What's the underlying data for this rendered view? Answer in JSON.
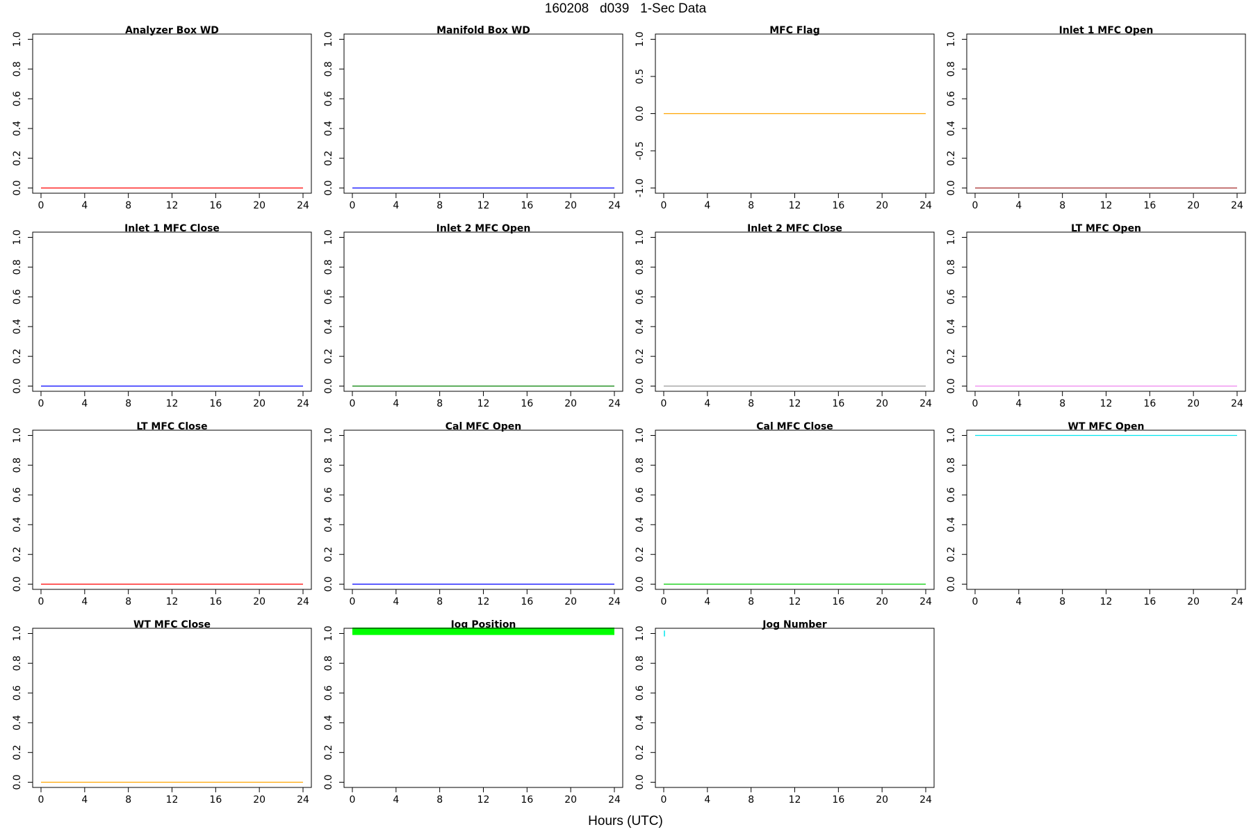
{
  "title": "160208   d039   1-Sec Data",
  "xlabel": "Hours (UTC)",
  "chart_data": [
    {
      "type": "line",
      "title": "Analyzer Box WD",
      "color": "#ff0000",
      "x": [
        0,
        24
      ],
      "y": [
        0,
        0
      ],
      "xlim": [
        0,
        24
      ],
      "ylim": [
        0,
        1
      ],
      "xticks": [
        "0",
        "4",
        "8",
        "12",
        "16",
        "20",
        "24"
      ],
      "yticks": [
        "0.0",
        "0.2",
        "0.4",
        "0.6",
        "0.8",
        "1.0"
      ]
    },
    {
      "type": "line",
      "title": "Manifold Box WD",
      "color": "#0000ff",
      "x": [
        0,
        24
      ],
      "y": [
        0,
        0
      ],
      "xlim": [
        0,
        24
      ],
      "ylim": [
        0,
        1
      ],
      "xticks": [
        "0",
        "4",
        "8",
        "12",
        "16",
        "20",
        "24"
      ],
      "yticks": [
        "0.0",
        "0.2",
        "0.4",
        "0.6",
        "0.8",
        "1.0"
      ]
    },
    {
      "type": "line",
      "title": "MFC Flag",
      "color": "#ffa500",
      "x": [
        0,
        24
      ],
      "y": [
        0,
        0
      ],
      "xlim": [
        0,
        24
      ],
      "ylim": [
        -1,
        1
      ],
      "xticks": [
        "0",
        "4",
        "8",
        "12",
        "16",
        "20",
        "24"
      ],
      "yticks": [
        "-1.0",
        "-0.5",
        "0.0",
        "0.5",
        "1.0"
      ]
    },
    {
      "type": "line",
      "title": "Inlet 1 MFC Open",
      "color": "#a52a2a",
      "x": [
        0,
        24
      ],
      "y": [
        0,
        0
      ],
      "xlim": [
        0,
        24
      ],
      "ylim": [
        0,
        1
      ],
      "xticks": [
        "0",
        "4",
        "8",
        "12",
        "16",
        "20",
        "24"
      ],
      "yticks": [
        "0.0",
        "0.2",
        "0.4",
        "0.6",
        "0.8",
        "1.0"
      ]
    },
    {
      "type": "line",
      "title": "Inlet 1 MFC Close",
      "color": "#0000ff",
      "x": [
        0,
        24
      ],
      "y": [
        0,
        0
      ],
      "xlim": [
        0,
        24
      ],
      "ylim": [
        0,
        1
      ],
      "xticks": [
        "0",
        "4",
        "8",
        "12",
        "16",
        "20",
        "24"
      ],
      "yticks": [
        "0.0",
        "0.2",
        "0.4",
        "0.6",
        "0.8",
        "1.0"
      ]
    },
    {
      "type": "line",
      "title": "Inlet 2 MFC Open",
      "color": "#008000",
      "x": [
        0,
        24
      ],
      "y": [
        0,
        0
      ],
      "xlim": [
        0,
        24
      ],
      "ylim": [
        0,
        1
      ],
      "xticks": [
        "0",
        "4",
        "8",
        "12",
        "16",
        "20",
        "24"
      ],
      "yticks": [
        "0.0",
        "0.2",
        "0.4",
        "0.6",
        "0.8",
        "1.0"
      ]
    },
    {
      "type": "line",
      "title": "Inlet 2 MFC Close",
      "color": "#999999",
      "x": [
        0,
        24
      ],
      "y": [
        0,
        0
      ],
      "xlim": [
        0,
        24
      ],
      "ylim": [
        0,
        1
      ],
      "xticks": [
        "0",
        "4",
        "8",
        "12",
        "16",
        "20",
        "24"
      ],
      "yticks": [
        "0.0",
        "0.2",
        "0.4",
        "0.6",
        "0.8",
        "1.0"
      ]
    },
    {
      "type": "line",
      "title": "LT MFC Open",
      "color": "#ee82ee",
      "x": [
        0,
        24
      ],
      "y": [
        0,
        0
      ],
      "xlim": [
        0,
        24
      ],
      "ylim": [
        0,
        1
      ],
      "xticks": [
        "0",
        "4",
        "8",
        "12",
        "16",
        "20",
        "24"
      ],
      "yticks": [
        "0.0",
        "0.2",
        "0.4",
        "0.6",
        "0.8",
        "1.0"
      ]
    },
    {
      "type": "line",
      "title": "LT MFC Close",
      "color": "#ff0000",
      "x": [
        0,
        24
      ],
      "y": [
        0,
        0
      ],
      "xlim": [
        0,
        24
      ],
      "ylim": [
        0,
        1
      ],
      "xticks": [
        "0",
        "4",
        "8",
        "12",
        "16",
        "20",
        "24"
      ],
      "yticks": [
        "0.0",
        "0.2",
        "0.4",
        "0.6",
        "0.8",
        "1.0"
      ]
    },
    {
      "type": "line",
      "title": "Cal MFC Open",
      "color": "#0000ff",
      "x": [
        0,
        24
      ],
      "y": [
        0,
        0
      ],
      "xlim": [
        0,
        24
      ],
      "ylim": [
        0,
        1
      ],
      "xticks": [
        "0",
        "4",
        "8",
        "12",
        "16",
        "20",
        "24"
      ],
      "yticks": [
        "0.0",
        "0.2",
        "0.4",
        "0.6",
        "0.8",
        "1.0"
      ]
    },
    {
      "type": "line",
      "title": "Cal MFC Close",
      "color": "#00cc00",
      "x": [
        0,
        24
      ],
      "y": [
        0,
        0
      ],
      "xlim": [
        0,
        24
      ],
      "ylim": [
        0,
        1
      ],
      "xticks": [
        "0",
        "4",
        "8",
        "12",
        "16",
        "20",
        "24"
      ],
      "yticks": [
        "0.0",
        "0.2",
        "0.4",
        "0.6",
        "0.8",
        "1.0"
      ]
    },
    {
      "type": "line",
      "title": "WT MFC Open",
      "color": "#00e5ee",
      "x": [
        0,
        24
      ],
      "y": [
        1,
        1
      ],
      "xlim": [
        0,
        24
      ],
      "ylim": [
        0,
        1
      ],
      "xticks": [
        "0",
        "4",
        "8",
        "12",
        "16",
        "20",
        "24"
      ],
      "yticks": [
        "0.0",
        "0.2",
        "0.4",
        "0.6",
        "0.8",
        "1.0"
      ]
    },
    {
      "type": "line",
      "title": "WT MFC Close",
      "color": "#ffa500",
      "x": [
        0,
        24
      ],
      "y": [
        0,
        0
      ],
      "xlim": [
        0,
        24
      ],
      "ylim": [
        0,
        1
      ],
      "xticks": [
        "0",
        "4",
        "8",
        "12",
        "16",
        "20",
        "24"
      ],
      "yticks": [
        "0.0",
        "0.2",
        "0.4",
        "0.6",
        "0.8",
        "1.0"
      ]
    },
    {
      "type": "line",
      "title": "Jog Position",
      "color": "#00ff00",
      "x": [
        0,
        24
      ],
      "y": [
        1,
        1
      ],
      "band": [
        0.99,
        1.04
      ],
      "xlim": [
        0,
        24
      ],
      "ylim": [
        0,
        1
      ],
      "xticks": [
        "0",
        "4",
        "8",
        "12",
        "16",
        "20",
        "24"
      ],
      "yticks": [
        "0.0",
        "0.2",
        "0.4",
        "0.6",
        "0.8",
        "1.0"
      ]
    },
    {
      "type": "line",
      "title": "Jog Number",
      "color": "#00e5ee",
      "x": [
        0,
        0.05
      ],
      "y": [
        1,
        1
      ],
      "spike": [
        0.98,
        1.02
      ],
      "xlim": [
        0,
        24
      ],
      "ylim": [
        0,
        1
      ],
      "xticks": [
        "0",
        "4",
        "8",
        "12",
        "16",
        "20",
        "24"
      ],
      "yticks": [
        "0.0",
        "0.2",
        "0.4",
        "0.6",
        "0.8",
        "1.0"
      ]
    }
  ]
}
